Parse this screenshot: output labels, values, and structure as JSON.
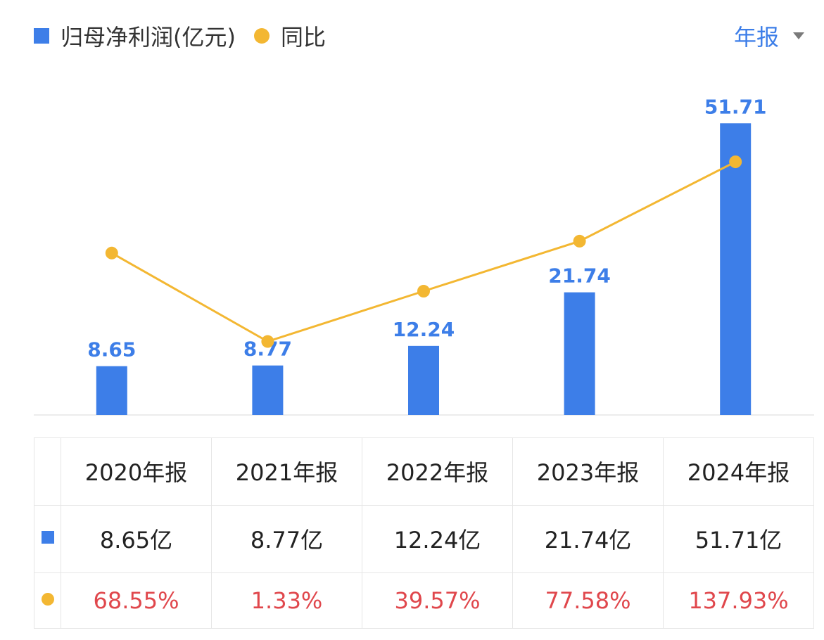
{
  "legend": {
    "bar_label": "归母净利润(亿元)",
    "line_label": "同比"
  },
  "period_selector": {
    "label": "年报",
    "icon": "caret-down-icon"
  },
  "colors": {
    "bar": "#3d7ee8",
    "line": "#f3b732",
    "value_label": "#3d7ee8",
    "percent_text": "#e0474c",
    "period_text": "#3d7ee8"
  },
  "chart_data": {
    "type": "bar",
    "categories": [
      "2020年报",
      "2021年报",
      "2022年报",
      "2023年报",
      "2024年报"
    ],
    "series": [
      {
        "name": "归母净利润(亿元)",
        "type": "bar",
        "values": [
          8.65,
          8.77,
          12.24,
          21.74,
          51.71
        ],
        "labels": [
          "8.65",
          "8.77",
          "12.24",
          "21.74",
          "51.71"
        ]
      },
      {
        "name": "同比",
        "type": "line",
        "values": [
          68.55,
          1.33,
          39.57,
          77.58,
          137.93
        ]
      }
    ]
  },
  "table": {
    "headers": [
      "2020年报",
      "2021年报",
      "2022年报",
      "2023年报",
      "2024年报"
    ],
    "rows": [
      {
        "marker": "square",
        "cells": [
          "8.65亿",
          "8.77亿",
          "12.24亿",
          "21.74亿",
          "51.71亿"
        ]
      },
      {
        "marker": "dot",
        "cells": [
          "68.55%",
          "1.33%",
          "39.57%",
          "77.58%",
          "137.93%"
        ]
      }
    ]
  }
}
